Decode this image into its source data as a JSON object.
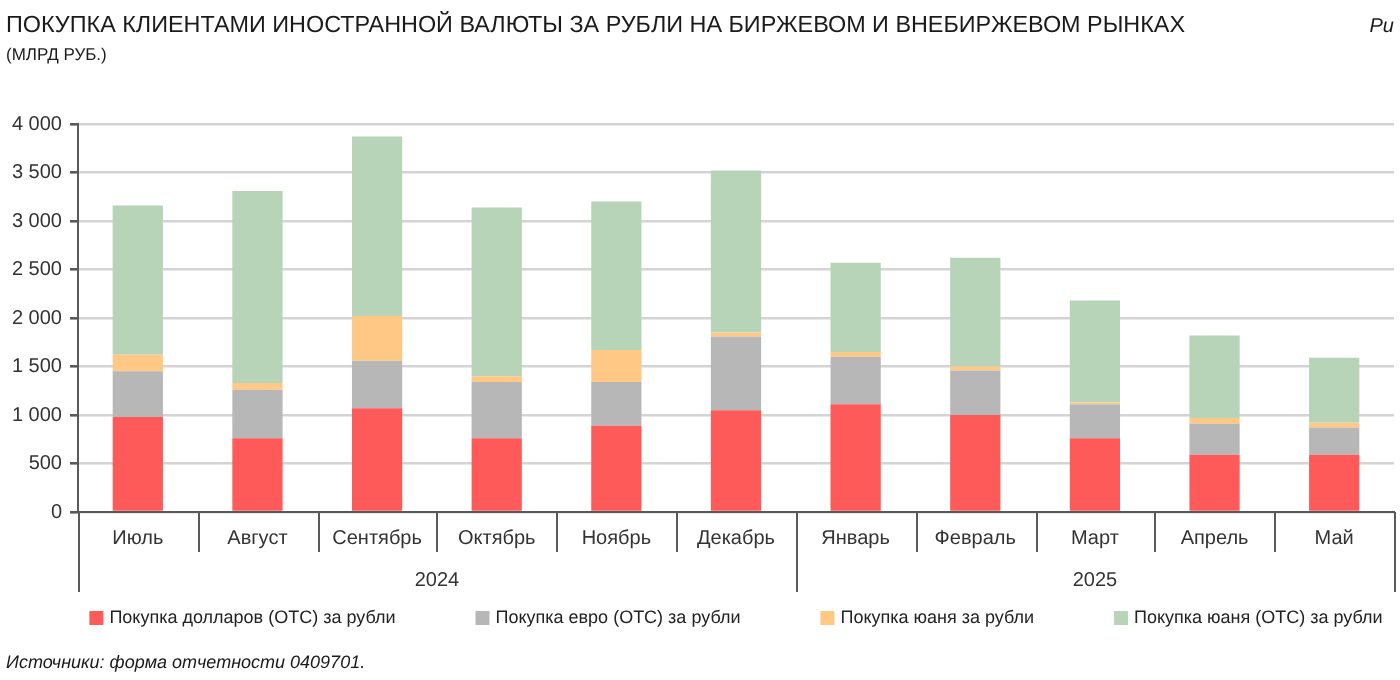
{
  "chart_data": {
    "type": "bar",
    "title": "ПОКУПКА КЛИЕНТАМИ ИНОСТРАННОЙ ВАЛЮТЫ ЗА РУБЛИ НА БИРЖЕВОМ И ВНЕБИРЖЕВОМ РЫНКАХ",
    "subtitle": "(МЛРД РУБ.)",
    "categories": [
      "Июль",
      "Август",
      "Сентябрь",
      "Октябрь",
      "Ноябрь",
      "Декабрь",
      "Январь",
      "Февраль",
      "Март",
      "Апрель",
      "Май"
    ],
    "series": [
      {
        "name": "Покупка долларов (OTC) за рубли",
        "color": "#ff5a5a",
        "values": [
          980,
          760,
          1070,
          760,
          890,
          1050,
          1110,
          1000,
          760,
          590,
          590
        ]
      },
      {
        "name": "Покупка евро (OTC) за рубли",
        "color": "#b7b7b7",
        "values": [
          470,
          500,
          490,
          580,
          450,
          760,
          490,
          460,
          350,
          320,
          280
        ]
      },
      {
        "name": "Покупка юаня за рубли",
        "color": "#ffc985",
        "values": [
          170,
          70,
          460,
          60,
          330,
          40,
          50,
          40,
          20,
          60,
          50
        ]
      },
      {
        "name": "Покупка юаня (OTC) за рубли",
        "color": "#b7d4b8",
        "values": [
          1540,
          1980,
          1850,
          1740,
          1530,
          1670,
          920,
          1120,
          1050,
          850,
          670
        ]
      }
    ],
    "stacked": true,
    "ylim": [
      0,
      4000
    ],
    "yticks": [
      0,
      500,
      {
        "value": 1000,
        "label": "1 000"
      },
      {
        "value": 1500,
        "label": "1 500"
      },
      {
        "value": 2000,
        "label": "2 000"
      },
      {
        "value": 2500,
        "label": "2 500"
      },
      {
        "value": 3000,
        "label": "3 000"
      },
      {
        "value": 3500,
        "label": "3 500"
      },
      {
        "value": 4000,
        "label": "4 000"
      }
    ],
    "grid": "y",
    "legend": "bottom",
    "annotations": [
      "Ри",
      "2024",
      "2025",
      "Источники: форма отчетности 0409701."
    ]
  }
}
